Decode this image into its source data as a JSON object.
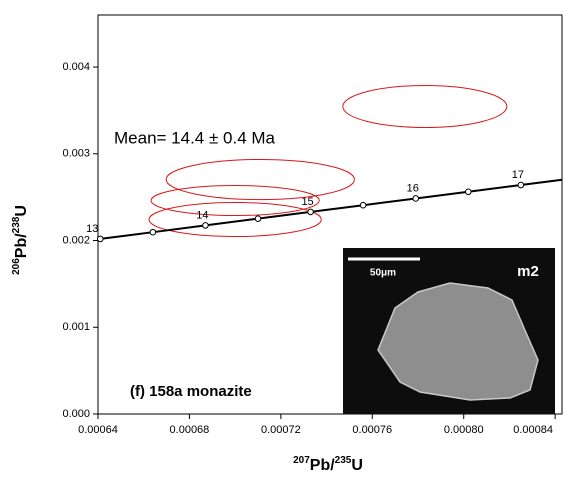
{
  "chart_data": {
    "type": "concordia",
    "x_label_parts": [
      "207",
      "Pb/",
      "235",
      "U"
    ],
    "y_label_parts": [
      "206",
      "Pb/",
      "238",
      "U"
    ],
    "xlim": [
      0.00064,
      0.000843
    ],
    "ylim": [
      0,
      0.0046
    ],
    "xticks": [
      0.00064,
      0.00068,
      0.00072,
      0.00076,
      {
        "value": 0.0008,
        "label": "0.00080"
      },
      0.00084
    ],
    "yticks": [
      {
        "value": 0,
        "label": "0.000"
      },
      0.001,
      0.002,
      0.003,
      0.004
    ],
    "concordia": {
      "color": "#000000",
      "x": [
        0.000641,
        0.000664,
        0.000687,
        0.00071,
        0.000733,
        0.000756,
        0.000779,
        0.000802,
        0.000825
      ],
      "y": [
        0.002019,
        0.002096,
        0.002174,
        0.002252,
        0.00233,
        0.002407,
        0.002485,
        0.002562,
        0.00264
      ],
      "age_labels": [
        13,
        null,
        14,
        null,
        15,
        null,
        16,
        null,
        17
      ]
    },
    "ellipses": {
      "color": "#d7191c",
      "x": [
        0.000783,
        0.000711,
        0.0007,
        0.0007
      ],
      "y": [
        0.003545,
        0.002703,
        0.002461,
        0.002242
      ],
      "x_err": [
        3.59e-05,
        4.12e-05,
        3.68e-05,
        3.77e-05
      ],
      "y_err": [
        0.000242,
        0.000231,
        0.000173,
        0.000196
      ]
    },
    "annotations": [
      "Mean= 14.4 ± 0.4 Ma",
      "(f) 158a monazite"
    ],
    "inset": {
      "scale_label": "50μm",
      "grain_label": "m2"
    }
  }
}
